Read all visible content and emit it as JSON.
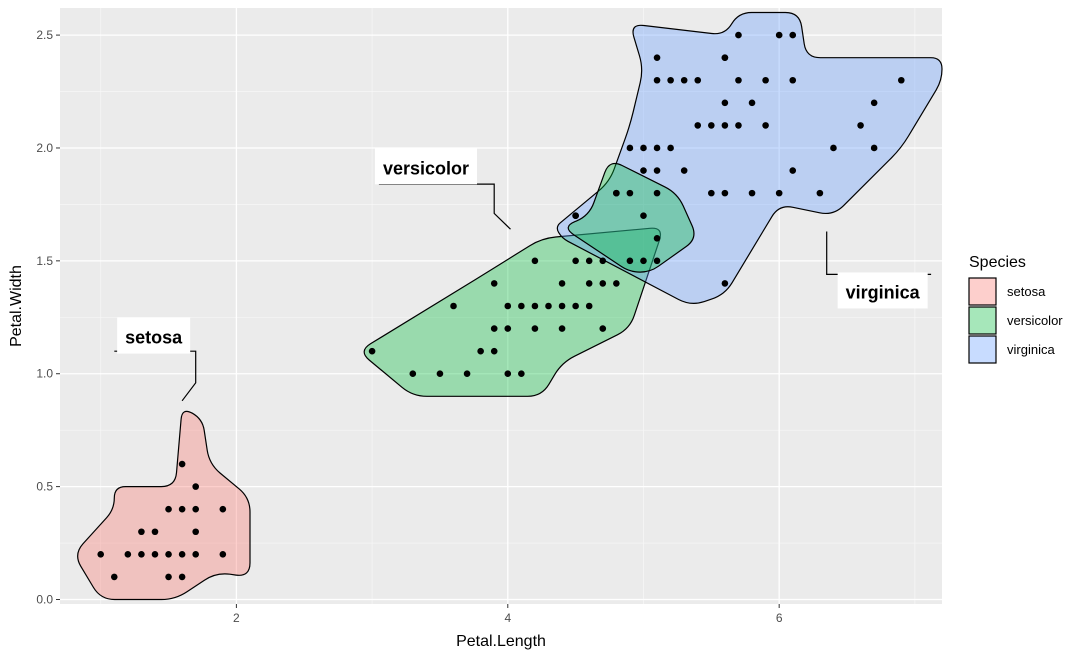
{
  "chart_data": {
    "type": "scatter",
    "title": "",
    "xlabel": "Petal.Length",
    "ylabel": "Petal.Width",
    "xlim": [
      0.7,
      7.2
    ],
    "ylim": [
      -0.02,
      2.62
    ],
    "x_ticks": [
      2,
      4,
      6
    ],
    "x_tick_labels": [
      "2",
      "4",
      "6"
    ],
    "y_ticks": [
      0.0,
      0.5,
      1.0,
      1.5,
      2.0,
      2.5
    ],
    "y_tick_labels": [
      "0.0",
      "0.5",
      "1.0",
      "1.5",
      "2.0",
      "2.5"
    ],
    "grid": true,
    "legend": {
      "title": "Species",
      "placement": "right",
      "entries": [
        {
          "label": "setosa",
          "color": "#F8766D"
        },
        {
          "label": "versicolor",
          "color": "#00BA38"
        },
        {
          "label": "virginica",
          "color": "#619CFF"
        }
      ]
    },
    "hull_colors": {
      "setosa": "#F8766D",
      "versicolor": "#00BA38",
      "virginica": "#619CFF"
    },
    "annotations": [
      {
        "label": "setosa",
        "x": 1.18,
        "y": 1.16,
        "line": [
          [
            1.1,
            1.1
          ],
          [
            1.7,
            1.1
          ],
          [
            1.7,
            0.96
          ],
          [
            1.6,
            0.88
          ]
        ]
      },
      {
        "label": "versicolor",
        "x": 3.08,
        "y": 1.91,
        "line": [
          [
            3.05,
            1.84
          ],
          [
            3.9,
            1.84
          ],
          [
            3.9,
            1.71
          ],
          [
            4.02,
            1.64
          ]
        ]
      },
      {
        "label": "virginica",
        "x": 6.49,
        "y": 1.36,
        "line": [
          [
            6.35,
            1.63
          ],
          [
            6.35,
            1.44
          ],
          [
            7.12,
            1.44
          ]
        ]
      }
    ],
    "hulls": {
      "setosa": [
        [
          1.0,
          0.0
        ],
        [
          1.55,
          0.0
        ],
        [
          1.85,
          0.12
        ],
        [
          2.1,
          0.1
        ],
        [
          2.1,
          0.45
        ],
        [
          1.8,
          0.6
        ],
        [
          1.75,
          0.8
        ],
        [
          1.6,
          0.85
        ],
        [
          1.55,
          0.5
        ],
        [
          1.1,
          0.5
        ],
        [
          1.1,
          0.4
        ],
        [
          0.8,
          0.2
        ]
      ],
      "versicolor": [
        [
          3.3,
          0.9
        ],
        [
          4.25,
          0.9
        ],
        [
          4.4,
          1.05
        ],
        [
          4.9,
          1.2
        ],
        [
          5.15,
          1.65
        ],
        [
          4.25,
          1.6
        ],
        [
          3.85,
          1.45
        ],
        [
          2.9,
          1.1
        ]
      ],
      "virginica": [
        [
          4.35,
          1.65
        ],
        [
          4.75,
          1.85
        ],
        [
          4.9,
          2.1
        ],
        [
          5.0,
          2.35
        ],
        [
          4.9,
          2.55
        ],
        [
          5.6,
          2.5
        ],
        [
          5.7,
          2.6
        ],
        [
          6.15,
          2.6
        ],
        [
          6.2,
          2.4
        ],
        [
          7.2,
          2.4
        ],
        [
          7.2,
          2.3
        ],
        [
          6.9,
          2.0
        ],
        [
          6.4,
          1.7
        ],
        [
          6.0,
          1.75
        ],
        [
          5.6,
          1.35
        ],
        [
          5.35,
          1.3
        ],
        [
          4.4,
          1.6
        ]
      ],
      "overlap_lens": [
        [
          4.9,
          1.45
        ],
        [
          5.05,
          1.45
        ],
        [
          5.4,
          1.6
        ],
        [
          5.25,
          1.8
        ],
        [
          4.75,
          1.95
        ],
        [
          4.6,
          1.7
        ],
        [
          4.4,
          1.65
        ]
      ]
    },
    "points": [
      [
        1.0,
        0.2
      ],
      [
        1.1,
        0.1
      ],
      [
        1.2,
        0.2
      ],
      [
        1.3,
        0.2
      ],
      [
        1.3,
        0.3
      ],
      [
        1.4,
        0.2
      ],
      [
        1.4,
        0.3
      ],
      [
        1.5,
        0.1
      ],
      [
        1.5,
        0.2
      ],
      [
        1.5,
        0.4
      ],
      [
        1.6,
        0.1
      ],
      [
        1.6,
        0.2
      ],
      [
        1.6,
        0.4
      ],
      [
        1.6,
        0.6
      ],
      [
        1.7,
        0.2
      ],
      [
        1.7,
        0.3
      ],
      [
        1.7,
        0.4
      ],
      [
        1.7,
        0.5
      ],
      [
        1.9,
        0.2
      ],
      [
        1.9,
        0.4
      ],
      [
        3.0,
        1.1
      ],
      [
        3.3,
        1.0
      ],
      [
        3.5,
        1.0
      ],
      [
        3.6,
        1.3
      ],
      [
        3.7,
        1.0
      ],
      [
        3.8,
        1.1
      ],
      [
        3.9,
        1.1
      ],
      [
        3.9,
        1.2
      ],
      [
        3.9,
        1.4
      ],
      [
        4.0,
        1.0
      ],
      [
        4.0,
        1.2
      ],
      [
        4.0,
        1.3
      ],
      [
        4.1,
        1.0
      ],
      [
        4.1,
        1.3
      ],
      [
        4.2,
        1.2
      ],
      [
        4.2,
        1.3
      ],
      [
        4.2,
        1.5
      ],
      [
        4.3,
        1.3
      ],
      [
        4.4,
        1.2
      ],
      [
        4.4,
        1.3
      ],
      [
        4.4,
        1.4
      ],
      [
        4.5,
        1.3
      ],
      [
        4.5,
        1.5
      ],
      [
        4.5,
        1.7
      ],
      [
        4.6,
        1.3
      ],
      [
        4.6,
        1.4
      ],
      [
        4.6,
        1.5
      ],
      [
        4.7,
        1.2
      ],
      [
        4.7,
        1.4
      ],
      [
        4.7,
        1.5
      ],
      [
        4.8,
        1.4
      ],
      [
        4.8,
        1.8
      ],
      [
        4.9,
        1.5
      ],
      [
        4.8,
        1.8
      ],
      [
        4.9,
        1.8
      ],
      [
        4.9,
        2.0
      ],
      [
        5.0,
        1.5
      ],
      [
        5.0,
        1.7
      ],
      [
        5.0,
        1.9
      ],
      [
        5.0,
        2.0
      ],
      [
        5.1,
        1.5
      ],
      [
        5.1,
        1.6
      ],
      [
        5.1,
        1.8
      ],
      [
        5.1,
        1.9
      ],
      [
        5.1,
        2.0
      ],
      [
        5.1,
        2.3
      ],
      [
        5.1,
        2.4
      ],
      [
        5.2,
        2.0
      ],
      [
        5.2,
        2.3
      ],
      [
        5.3,
        1.9
      ],
      [
        5.3,
        2.3
      ],
      [
        5.4,
        2.1
      ],
      [
        5.4,
        2.3
      ],
      [
        5.5,
        1.8
      ],
      [
        5.5,
        2.1
      ],
      [
        5.6,
        1.4
      ],
      [
        5.6,
        1.8
      ],
      [
        5.6,
        2.1
      ],
      [
        5.6,
        2.2
      ],
      [
        5.6,
        2.4
      ],
      [
        5.7,
        2.1
      ],
      [
        5.7,
        2.3
      ],
      [
        5.7,
        2.5
      ],
      [
        5.8,
        1.8
      ],
      [
        5.8,
        2.2
      ],
      [
        5.9,
        2.1
      ],
      [
        5.9,
        2.3
      ],
      [
        6.0,
        1.8
      ],
      [
        6.0,
        2.5
      ],
      [
        6.1,
        1.9
      ],
      [
        6.1,
        2.3
      ],
      [
        6.1,
        2.5
      ],
      [
        6.3,
        1.8
      ],
      [
        6.4,
        2.0
      ],
      [
        6.6,
        2.1
      ],
      [
        6.7,
        2.0
      ],
      [
        6.7,
        2.2
      ],
      [
        6.9,
        2.3
      ],
      [
        5.6,
        2.4
      ],
      [
        4.5,
        1.7
      ]
    ]
  }
}
